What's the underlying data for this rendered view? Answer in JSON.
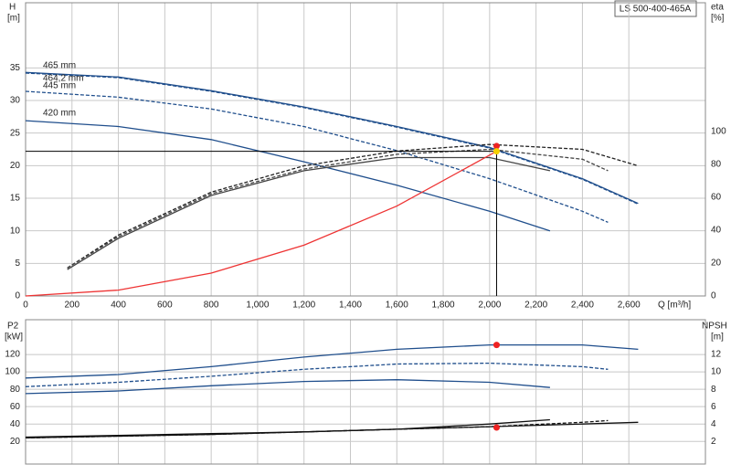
{
  "chart_data": [
    {
      "type": "line",
      "title": "LS 500-400-465A",
      "x_label": "Q [m³/h]",
      "y_label": "H",
      "y_unit": "[m]",
      "y2_label": "eta",
      "y2_unit": "[%]",
      "xlim": [
        0,
        2930
      ],
      "ylim": [
        0,
        45
      ],
      "y2lim": [
        0,
        178
      ],
      "xticks": [
        0,
        200,
        400,
        600,
        800,
        {
          "value": 1000,
          "label": "1,000"
        },
        {
          "value": 1200,
          "label": "1,200"
        },
        {
          "value": 1400,
          "label": "1,400"
        },
        {
          "value": 1600,
          "label": "1,600"
        },
        {
          "value": 1800,
          "label": "1,800"
        },
        {
          "value": 2000,
          "label": "2,000"
        },
        {
          "value": 2200,
          "label": "2,200"
        },
        {
          "value": 2400,
          "label": "2,400"
        },
        {
          "value": 2600,
          "label": "2,600"
        }
      ],
      "yticks": [
        0,
        5,
        10,
        15,
        20,
        25,
        30,
        35
      ],
      "y2ticks": [
        0,
        20,
        40,
        60,
        80,
        100
      ],
      "grid": true,
      "series": [
        {
          "name": "465 mm",
          "color": "#1f4e8c",
          "x": [
            0,
            400,
            800,
            1200,
            1600,
            2000,
            2400,
            2640
          ],
          "values": [
            34.3,
            33.6,
            31.5,
            29,
            26,
            22.8,
            18,
            14.2
          ]
        },
        {
          "name": "464,2 mm",
          "color": "#1f4e8c",
          "dash": true,
          "x": [
            0,
            400,
            800,
            1200,
            1600,
            2000,
            2400,
            2640
          ],
          "values": [
            34.2,
            33.5,
            31.4,
            28.9,
            25.9,
            22.7,
            17.9,
            14.1
          ]
        },
        {
          "name": "445 mm",
          "color": "#1f4e8c",
          "dash": true,
          "x": [
            0,
            400,
            800,
            1200,
            1600,
            2000,
            2400,
            2510
          ],
          "values": [
            31.4,
            30.5,
            28.7,
            26,
            22.3,
            18,
            13,
            11.3
          ]
        },
        {
          "name": "420 mm",
          "color": "#1f4e8c",
          "x": [
            0,
            400,
            800,
            1200,
            1600,
            2000,
            2260
          ],
          "values": [
            26.9,
            26,
            24,
            20.6,
            17,
            13,
            10
          ]
        },
        {
          "color": "#222",
          "axis": "y2",
          "dash": true,
          "x": [
            180,
            400,
            800,
            1200,
            1600,
            2000,
            2400,
            2640
          ],
          "values": [
            17,
            37,
            63,
            79,
            88,
            92,
            89,
            79
          ]
        },
        {
          "color": "#444",
          "axis": "y2",
          "dash": true,
          "x": [
            180,
            400,
            800,
            1200,
            1600,
            2000,
            2400,
            2510
          ],
          "values": [
            17,
            36,
            62,
            77,
            86,
            89,
            83,
            76
          ]
        },
        {
          "color": "#444",
          "axis": "y2",
          "x": [
            180,
            400,
            800,
            1200,
            1600,
            2000,
            2260
          ],
          "values": [
            16,
            35,
            61,
            76,
            84,
            84,
            76
          ]
        },
        {
          "color": "#e33",
          "x": [
            0,
            400,
            800,
            1200,
            1600,
            2030
          ],
          "values": [
            0,
            0.9,
            3.5,
            7.8,
            13.8,
            22.2
          ]
        }
      ],
      "points": [
        {
          "x": 2030,
          "y": 23,
          "color": "#e22"
        }
      ],
      "duty_point": {
        "x": 2030,
        "y": 22.2,
        "color": "#f5d000"
      }
    },
    {
      "type": "line",
      "y_label": "P2",
      "y_unit": "[kW]",
      "y2_label": "NPSH",
      "y2_unit": "[m]",
      "xlim": [
        0,
        2930
      ],
      "ylim": [
        -6,
        160
      ],
      "y2lim": [
        -0.6,
        16
      ],
      "xticks": [
        0,
        200,
        400,
        600,
        800,
        1000,
        1200,
        1400,
        1600,
        1800,
        2000,
        2200,
        2400,
        2600
      ],
      "yticks": [
        20,
        40,
        60,
        80,
        100,
        120
      ],
      "y2ticks": [
        2,
        4,
        6,
        8,
        10,
        12
      ],
      "grid": true,
      "series": [
        {
          "color": "#1f4e8c",
          "x": [
            0,
            400,
            800,
            1200,
            1600,
            2000,
            2400,
            2640
          ],
          "values": [
            93,
            97,
            106,
            117,
            126,
            131,
            131,
            126
          ]
        },
        {
          "color": "#1f4e8c",
          "dash": true,
          "x": [
            0,
            400,
            800,
            1200,
            1600,
            2000,
            2400,
            2510
          ],
          "values": [
            83,
            88,
            95,
            103,
            109,
            110,
            106,
            103
          ]
        },
        {
          "color": "#1f4e8c",
          "x": [
            0,
            400,
            800,
            1200,
            1600,
            2000,
            2260
          ],
          "values": [
            75,
            78,
            84,
            89,
            91,
            88,
            82
          ]
        },
        {
          "color": "#111",
          "axis": "y2",
          "x": [
            0,
            400,
            800,
            1200,
            1600,
            2000,
            2400,
            2640
          ],
          "values": [
            2.5,
            2.7,
            2.9,
            3.1,
            3.4,
            3.7,
            4.0,
            4.2
          ]
        },
        {
          "color": "#111",
          "axis": "y2",
          "dash": true,
          "x": [
            0,
            400,
            800,
            1200,
            1600,
            2000,
            2400,
            2510
          ],
          "values": [
            2.4,
            2.6,
            2.8,
            3.1,
            3.4,
            3.7,
            4.2,
            4.4
          ]
        },
        {
          "color": "#111",
          "axis": "y2",
          "x": [
            0,
            400,
            800,
            1200,
            1600,
            2000,
            2260
          ],
          "values": [
            2.4,
            2.6,
            2.8,
            3.1,
            3.4,
            4.0,
            4.5
          ]
        }
      ],
      "points": [
        {
          "x": 2030,
          "y": 131,
          "color": "#e22"
        },
        {
          "x": 2030,
          "y": 3.6,
          "color": "#e22",
          "axis": "y2"
        }
      ]
    }
  ]
}
